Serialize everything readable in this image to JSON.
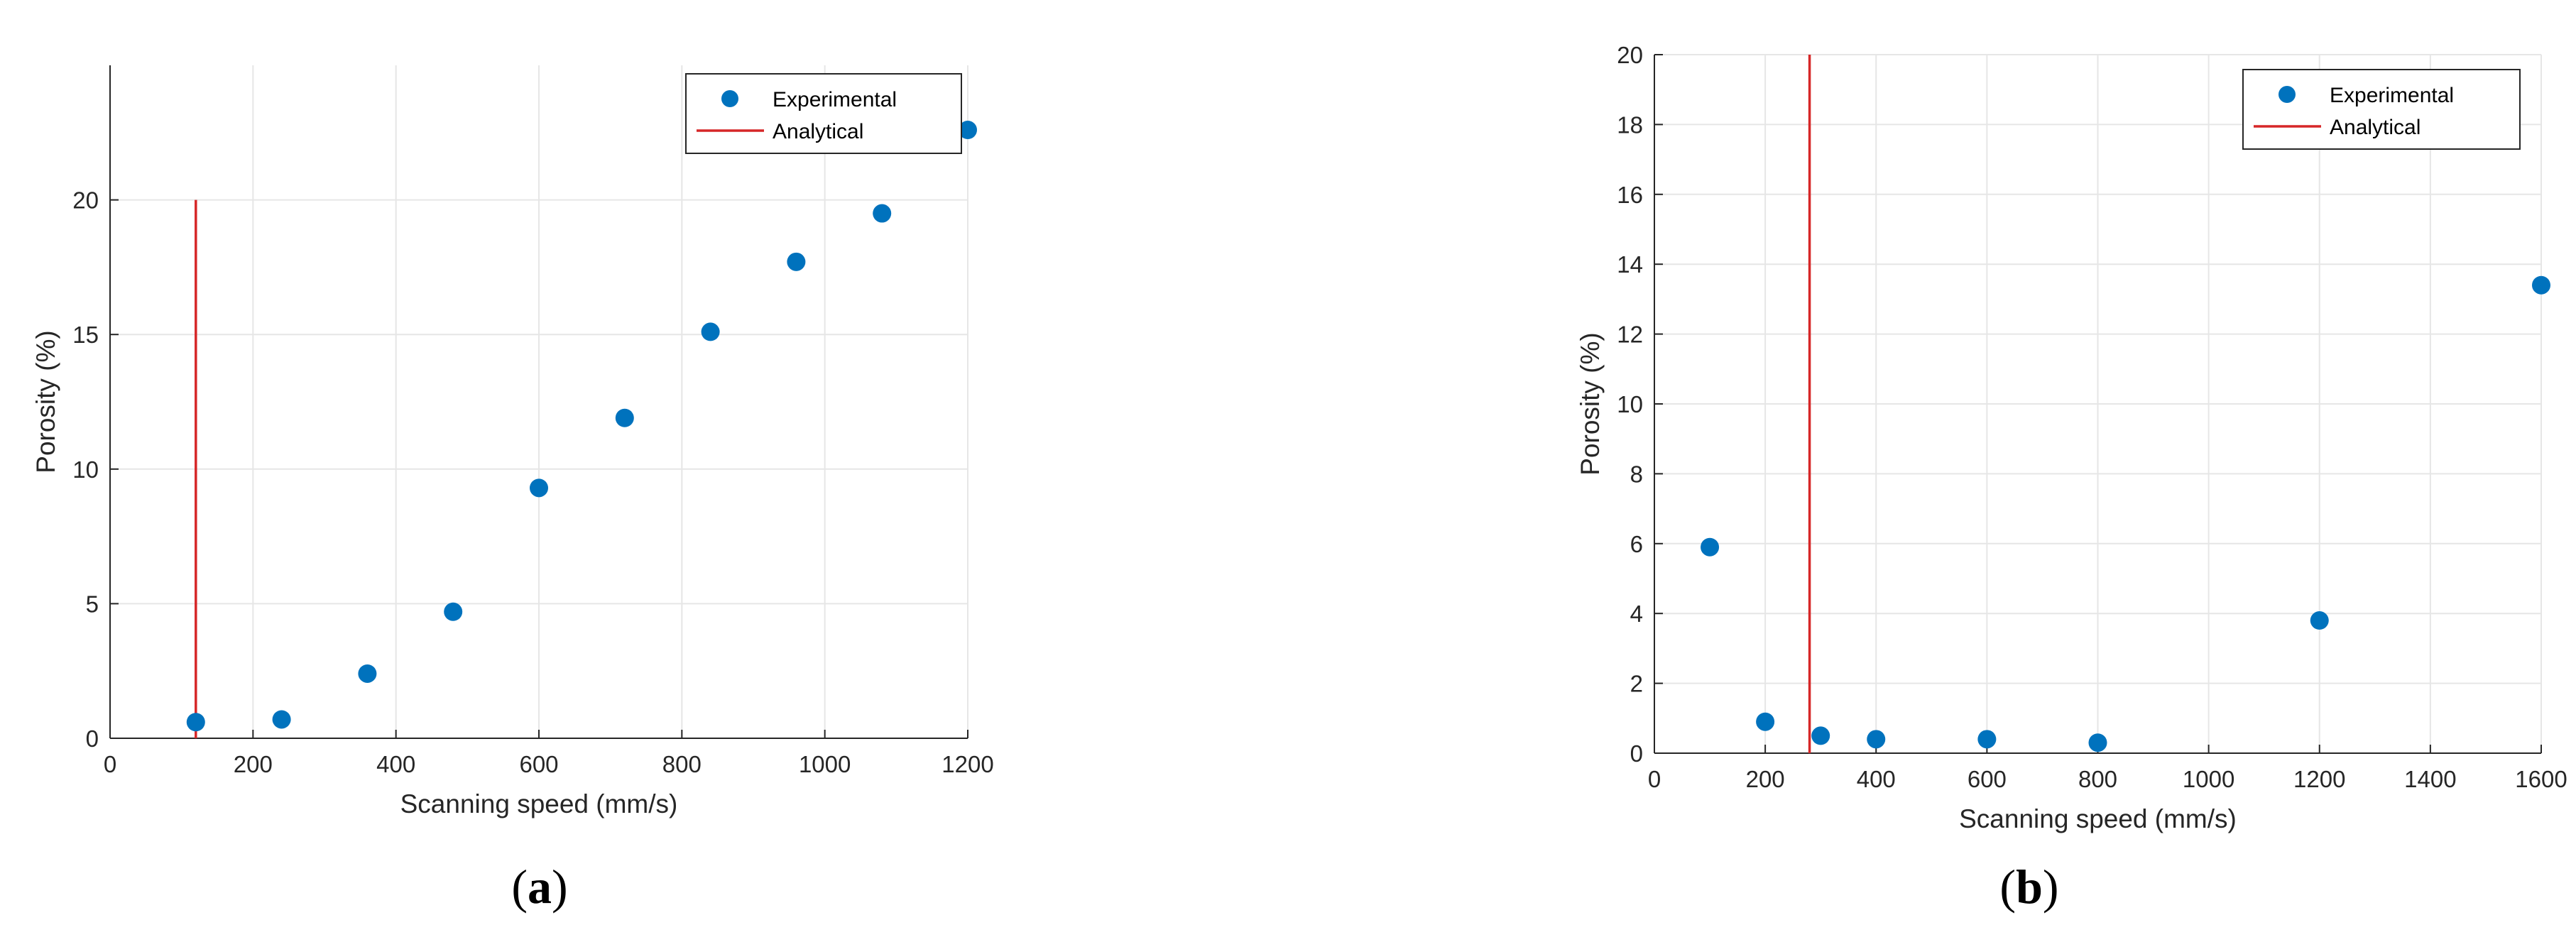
{
  "chart_data": [
    {
      "type": "scatter",
      "caption": {
        "open": "(",
        "letter": "a",
        "close": ")"
      },
      "xlabel": "Scanning speed (mm/s)",
      "ylabel": "Porosity (%)",
      "xlim": [
        0,
        1200
      ],
      "ylim": [
        0,
        25
      ],
      "xticks": [
        0,
        200,
        400,
        600,
        800,
        1000,
        1200
      ],
      "yticks": [
        0,
        5,
        10,
        15,
        20
      ],
      "grid": true,
      "legend_position": "top-right",
      "series": [
        {
          "name": "Experimental",
          "kind": "points",
          "color": "#0072bd",
          "x": [
            120,
            240,
            360,
            480,
            600,
            720,
            840,
            960,
            1080,
            1200
          ],
          "y": [
            0.6,
            0.7,
            2.4,
            4.7,
            9.3,
            11.9,
            15.1,
            17.7,
            19.5,
            22.6
          ]
        },
        {
          "name": "Analytical",
          "kind": "vline",
          "color": "#d62728",
          "x": 120,
          "y_range": [
            0,
            20
          ]
        }
      ]
    },
    {
      "type": "scatter",
      "caption": {
        "open": "(",
        "letter": "b",
        "close": ")"
      },
      "xlabel": "Scanning speed (mm/s)",
      "ylabel": "Porosity (%)",
      "xlim": [
        0,
        1600
      ],
      "ylim": [
        0,
        20
      ],
      "xticks": [
        0,
        200,
        400,
        600,
        800,
        1000,
        1200,
        1400,
        1600
      ],
      "yticks": [
        0,
        2,
        4,
        6,
        8,
        10,
        12,
        14,
        16,
        18,
        20
      ],
      "grid": true,
      "legend_position": "top-right",
      "series": [
        {
          "name": "Experimental",
          "kind": "points",
          "color": "#0072bd",
          "x": [
            100,
            200,
            300,
            400,
            600,
            800,
            1200,
            1600
          ],
          "y": [
            5.9,
            0.9,
            0.5,
            0.4,
            0.4,
            0.3,
            3.8,
            13.4
          ]
        },
        {
          "name": "Analytical",
          "kind": "vline",
          "color": "#d62728",
          "x": 280,
          "y_range": [
            0,
            20
          ]
        }
      ]
    }
  ]
}
